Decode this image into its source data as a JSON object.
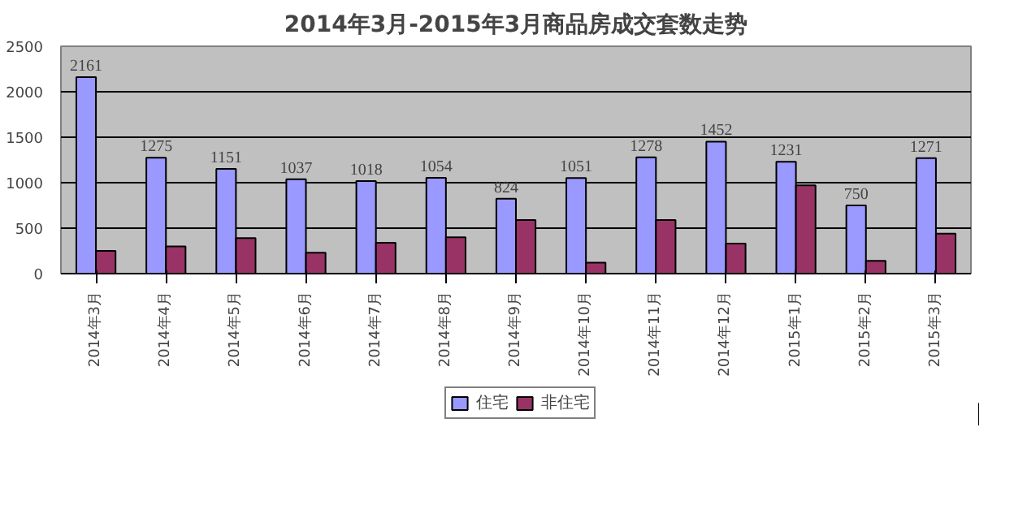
{
  "chart_data": {
    "type": "bar",
    "title": "2014年3月-2015年3月商品房成交套数走势",
    "categories": [
      "2014年3月",
      "2014年4月",
      "2014年5月",
      "2014年6月",
      "2014年7月",
      "2014年8月",
      "2014年9月",
      "2014年10月",
      "2014年11月",
      "2014年12月",
      "2015年1月",
      "2015年2月",
      "2015年3月"
    ],
    "series": [
      {
        "name": "住宅",
        "color": "#9999ff",
        "values": [
          2161,
          1275,
          1151,
          1037,
          1018,
          1054,
          824,
          1051,
          1278,
          1452,
          1231,
          750,
          1271
        ],
        "value_labels": [
          "2161",
          "1275",
          "1151",
          "1037",
          "1018",
          "1054",
          "824",
          "1051",
          "1278",
          "1452",
          "1231",
          "750",
          "1271"
        ]
      },
      {
        "name": "非住宅",
        "color": "#993366",
        "values": [
          250,
          300,
          390,
          230,
          340,
          400,
          590,
          120,
          590,
          330,
          970,
          140,
          440
        ]
      }
    ],
    "ylim": [
      0,
      2500
    ],
    "yticks": [
      0,
      500,
      1000,
      1500,
      2000,
      2500
    ],
    "grid": "y",
    "legend": "bottom"
  }
}
